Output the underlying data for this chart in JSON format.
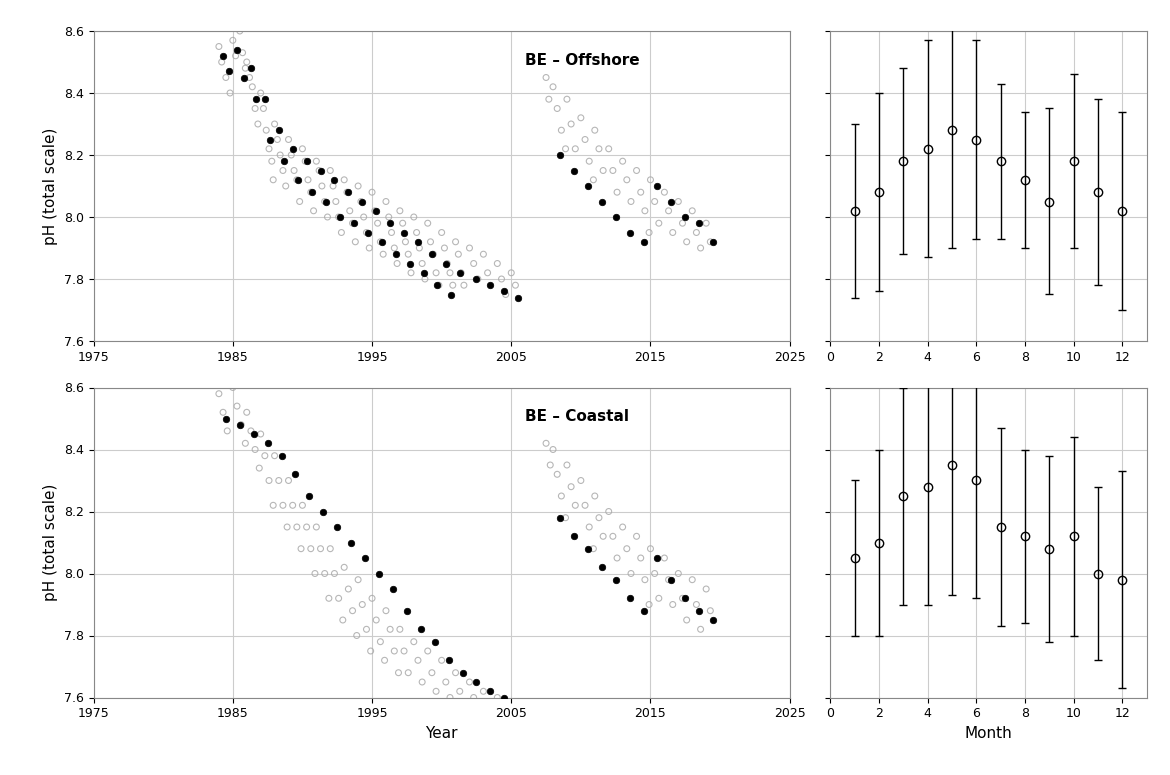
{
  "ylabel": "pH (total scale)",
  "xlabel_left": "Year",
  "xlabel_right": "Month",
  "ylim": [
    7.6,
    8.6
  ],
  "yticks": [
    7.6,
    7.8,
    8.0,
    8.2,
    8.4,
    8.6
  ],
  "xlim_time": [
    1975,
    2025
  ],
  "xticks_time": [
    1975,
    1985,
    1995,
    2005,
    2015,
    2025
  ],
  "xlim_month": [
    0,
    13
  ],
  "xticks_month": [
    0,
    2,
    4,
    6,
    8,
    10,
    12
  ],
  "label_offshore": "BE – Offshore",
  "label_coastal": "BE – Coastal",
  "offshore_gray_pts": [
    [
      1984.0,
      8.55
    ],
    [
      1984.2,
      8.5
    ],
    [
      1984.5,
      8.45
    ],
    [
      1984.8,
      8.4
    ],
    [
      1985.0,
      8.57
    ],
    [
      1985.2,
      8.52
    ],
    [
      1985.5,
      8.6
    ],
    [
      1985.7,
      8.53
    ],
    [
      1985.9,
      8.48
    ],
    [
      1986.0,
      8.5
    ],
    [
      1986.2,
      8.45
    ],
    [
      1986.4,
      8.42
    ],
    [
      1986.6,
      8.35
    ],
    [
      1986.8,
      8.3
    ],
    [
      1987.0,
      8.4
    ],
    [
      1987.2,
      8.35
    ],
    [
      1987.4,
      8.28
    ],
    [
      1987.6,
      8.22
    ],
    [
      1987.8,
      8.18
    ],
    [
      1987.9,
      8.12
    ],
    [
      1988.0,
      8.3
    ],
    [
      1988.2,
      8.25
    ],
    [
      1988.4,
      8.2
    ],
    [
      1988.6,
      8.15
    ],
    [
      1988.8,
      8.1
    ],
    [
      1989.0,
      8.25
    ],
    [
      1989.2,
      8.2
    ],
    [
      1989.4,
      8.15
    ],
    [
      1989.6,
      8.12
    ],
    [
      1989.8,
      8.05
    ],
    [
      1990.0,
      8.22
    ],
    [
      1990.2,
      8.18
    ],
    [
      1990.4,
      8.12
    ],
    [
      1990.6,
      8.08
    ],
    [
      1990.8,
      8.02
    ],
    [
      1991.0,
      8.18
    ],
    [
      1991.2,
      8.15
    ],
    [
      1991.4,
      8.1
    ],
    [
      1991.6,
      8.05
    ],
    [
      1991.8,
      8.0
    ],
    [
      1992.0,
      8.15
    ],
    [
      1992.2,
      8.1
    ],
    [
      1992.4,
      8.05
    ],
    [
      1992.6,
      8.0
    ],
    [
      1992.8,
      7.95
    ],
    [
      1993.0,
      8.12
    ],
    [
      1993.2,
      8.08
    ],
    [
      1993.4,
      8.02
    ],
    [
      1993.6,
      7.98
    ],
    [
      1993.8,
      7.92
    ],
    [
      1994.0,
      8.1
    ],
    [
      1994.2,
      8.05
    ],
    [
      1994.4,
      8.0
    ],
    [
      1994.6,
      7.95
    ],
    [
      1994.8,
      7.9
    ],
    [
      1995.0,
      8.08
    ],
    [
      1995.2,
      8.02
    ],
    [
      1995.4,
      7.98
    ],
    [
      1995.6,
      7.92
    ],
    [
      1995.8,
      7.88
    ],
    [
      1996.0,
      8.05
    ],
    [
      1996.2,
      8.0
    ],
    [
      1996.4,
      7.95
    ],
    [
      1996.6,
      7.9
    ],
    [
      1996.8,
      7.85
    ],
    [
      1997.0,
      8.02
    ],
    [
      1997.2,
      7.98
    ],
    [
      1997.4,
      7.92
    ],
    [
      1997.6,
      7.88
    ],
    [
      1997.8,
      7.82
    ],
    [
      1998.0,
      8.0
    ],
    [
      1998.2,
      7.95
    ],
    [
      1998.4,
      7.9
    ],
    [
      1998.6,
      7.85
    ],
    [
      1998.8,
      7.8
    ],
    [
      1999.0,
      7.98
    ],
    [
      1999.2,
      7.92
    ],
    [
      1999.4,
      7.88
    ],
    [
      1999.6,
      7.82
    ],
    [
      1999.8,
      7.78
    ],
    [
      2000.0,
      7.95
    ],
    [
      2000.2,
      7.9
    ],
    [
      2000.4,
      7.85
    ],
    [
      2000.6,
      7.82
    ],
    [
      2000.8,
      7.78
    ],
    [
      2001.0,
      7.92
    ],
    [
      2001.2,
      7.88
    ],
    [
      2001.4,
      7.82
    ],
    [
      2001.6,
      7.78
    ],
    [
      2002.0,
      7.9
    ],
    [
      2002.3,
      7.85
    ],
    [
      2002.6,
      7.8
    ],
    [
      2003.0,
      7.88
    ],
    [
      2003.3,
      7.82
    ],
    [
      2004.0,
      7.85
    ],
    [
      2004.3,
      7.8
    ],
    [
      2004.6,
      7.75
    ],
    [
      2005.0,
      7.82
    ],
    [
      2005.3,
      7.78
    ],
    [
      2007.5,
      8.45
    ],
    [
      2007.7,
      8.38
    ],
    [
      2008.0,
      8.42
    ],
    [
      2008.3,
      8.35
    ],
    [
      2008.6,
      8.28
    ],
    [
      2008.9,
      8.22
    ],
    [
      2009.0,
      8.38
    ],
    [
      2009.3,
      8.3
    ],
    [
      2009.6,
      8.22
    ],
    [
      2010.0,
      8.32
    ],
    [
      2010.3,
      8.25
    ],
    [
      2010.6,
      8.18
    ],
    [
      2010.9,
      8.12
    ],
    [
      2011.0,
      8.28
    ],
    [
      2011.3,
      8.22
    ],
    [
      2011.6,
      8.15
    ],
    [
      2012.0,
      8.22
    ],
    [
      2012.3,
      8.15
    ],
    [
      2012.6,
      8.08
    ],
    [
      2013.0,
      8.18
    ],
    [
      2013.3,
      8.12
    ],
    [
      2013.6,
      8.05
    ],
    [
      2014.0,
      8.15
    ],
    [
      2014.3,
      8.08
    ],
    [
      2014.6,
      8.02
    ],
    [
      2014.9,
      7.95
    ],
    [
      2015.0,
      8.12
    ],
    [
      2015.3,
      8.05
    ],
    [
      2015.6,
      7.98
    ],
    [
      2016.0,
      8.08
    ],
    [
      2016.3,
      8.02
    ],
    [
      2016.6,
      7.95
    ],
    [
      2017.0,
      8.05
    ],
    [
      2017.3,
      7.98
    ],
    [
      2017.6,
      7.92
    ],
    [
      2018.0,
      8.02
    ],
    [
      2018.3,
      7.95
    ],
    [
      2018.6,
      7.9
    ],
    [
      2019.0,
      7.98
    ],
    [
      2019.3,
      7.92
    ]
  ],
  "offshore_black_pts": [
    [
      1984.3,
      8.52
    ],
    [
      1984.7,
      8.47
    ],
    [
      1985.3,
      8.54
    ],
    [
      1985.8,
      8.45
    ],
    [
      1986.3,
      8.48
    ],
    [
      1986.7,
      8.38
    ],
    [
      1987.3,
      8.38
    ],
    [
      1987.7,
      8.25
    ],
    [
      1988.3,
      8.28
    ],
    [
      1988.7,
      8.18
    ],
    [
      1989.3,
      8.22
    ],
    [
      1989.7,
      8.12
    ],
    [
      1990.3,
      8.18
    ],
    [
      1990.7,
      8.08
    ],
    [
      1991.3,
      8.15
    ],
    [
      1991.7,
      8.05
    ],
    [
      1992.3,
      8.12
    ],
    [
      1992.7,
      8.0
    ],
    [
      1993.3,
      8.08
    ],
    [
      1993.7,
      7.98
    ],
    [
      1994.3,
      8.05
    ],
    [
      1994.7,
      7.95
    ],
    [
      1995.3,
      8.02
    ],
    [
      1995.7,
      7.92
    ],
    [
      1996.3,
      7.98
    ],
    [
      1996.7,
      7.88
    ],
    [
      1997.3,
      7.95
    ],
    [
      1997.7,
      7.85
    ],
    [
      1998.3,
      7.92
    ],
    [
      1998.7,
      7.82
    ],
    [
      1999.3,
      7.88
    ],
    [
      1999.7,
      7.78
    ],
    [
      2000.3,
      7.85
    ],
    [
      2000.7,
      7.75
    ],
    [
      2001.3,
      7.82
    ],
    [
      2002.5,
      7.8
    ],
    [
      2003.5,
      7.78
    ],
    [
      2004.5,
      7.76
    ],
    [
      2005.5,
      7.74
    ],
    [
      2008.5,
      8.2
    ],
    [
      2009.5,
      8.15
    ],
    [
      2010.5,
      8.1
    ],
    [
      2011.5,
      8.05
    ],
    [
      2012.5,
      8.0
    ],
    [
      2013.5,
      7.95
    ],
    [
      2014.5,
      7.92
    ],
    [
      2015.5,
      8.1
    ],
    [
      2016.5,
      8.05
    ],
    [
      2017.5,
      8.0
    ],
    [
      2018.5,
      7.98
    ],
    [
      2019.5,
      7.92
    ]
  ],
  "offshore_season_months": [
    1,
    2,
    3,
    4,
    5,
    6,
    7,
    8,
    9,
    10,
    11,
    12
  ],
  "offshore_season_mean": [
    8.02,
    8.08,
    8.18,
    8.22,
    8.28,
    8.25,
    8.18,
    8.12,
    8.05,
    8.18,
    8.08,
    8.02
  ],
  "offshore_season_std": [
    0.28,
    0.32,
    0.3,
    0.35,
    0.38,
    0.32,
    0.25,
    0.22,
    0.3,
    0.28,
    0.3,
    0.32
  ],
  "coastal_gray_pts": [
    [
      1984.0,
      8.58
    ],
    [
      1984.3,
      8.52
    ],
    [
      1984.6,
      8.46
    ],
    [
      1985.0,
      8.6
    ],
    [
      1985.3,
      8.54
    ],
    [
      1985.6,
      8.48
    ],
    [
      1985.9,
      8.42
    ],
    [
      1986.0,
      8.52
    ],
    [
      1986.3,
      8.46
    ],
    [
      1986.6,
      8.4
    ],
    [
      1986.9,
      8.34
    ],
    [
      1987.0,
      8.45
    ],
    [
      1987.3,
      8.38
    ],
    [
      1987.6,
      8.3
    ],
    [
      1987.9,
      8.22
    ],
    [
      1988.0,
      8.38
    ],
    [
      1988.3,
      8.3
    ],
    [
      1988.6,
      8.22
    ],
    [
      1988.9,
      8.15
    ],
    [
      1989.0,
      8.3
    ],
    [
      1989.3,
      8.22
    ],
    [
      1989.6,
      8.15
    ],
    [
      1989.9,
      8.08
    ],
    [
      1990.0,
      8.22
    ],
    [
      1990.3,
      8.15
    ],
    [
      1990.6,
      8.08
    ],
    [
      1990.9,
      8.0
    ],
    [
      1991.0,
      8.15
    ],
    [
      1991.3,
      8.08
    ],
    [
      1991.6,
      8.0
    ],
    [
      1991.9,
      7.92
    ],
    [
      1992.0,
      8.08
    ],
    [
      1992.3,
      8.0
    ],
    [
      1992.6,
      7.92
    ],
    [
      1992.9,
      7.85
    ],
    [
      1993.0,
      8.02
    ],
    [
      1993.3,
      7.95
    ],
    [
      1993.6,
      7.88
    ],
    [
      1993.9,
      7.8
    ],
    [
      1994.0,
      7.98
    ],
    [
      1994.3,
      7.9
    ],
    [
      1994.6,
      7.82
    ],
    [
      1994.9,
      7.75
    ],
    [
      1995.0,
      7.92
    ],
    [
      1995.3,
      7.85
    ],
    [
      1995.6,
      7.78
    ],
    [
      1995.9,
      7.72
    ],
    [
      1996.0,
      7.88
    ],
    [
      1996.3,
      7.82
    ],
    [
      1996.6,
      7.75
    ],
    [
      1996.9,
      7.68
    ],
    [
      1997.0,
      7.82
    ],
    [
      1997.3,
      7.75
    ],
    [
      1997.6,
      7.68
    ],
    [
      1998.0,
      7.78
    ],
    [
      1998.3,
      7.72
    ],
    [
      1998.6,
      7.65
    ],
    [
      1999.0,
      7.75
    ],
    [
      1999.3,
      7.68
    ],
    [
      1999.6,
      7.62
    ],
    [
      2000.0,
      7.72
    ],
    [
      2000.3,
      7.65
    ],
    [
      2000.6,
      7.6
    ],
    [
      2001.0,
      7.68
    ],
    [
      2001.3,
      7.62
    ],
    [
      2001.6,
      7.58
    ],
    [
      2002.0,
      7.65
    ],
    [
      2002.3,
      7.6
    ],
    [
      2003.0,
      7.62
    ],
    [
      2003.3,
      7.58
    ],
    [
      2003.6,
      7.55
    ],
    [
      2004.0,
      7.6
    ],
    [
      2004.3,
      7.56
    ],
    [
      2005.0,
      7.58
    ],
    [
      2005.5,
      7.54
    ],
    [
      2006.0,
      7.55
    ],
    [
      2007.5,
      8.42
    ],
    [
      2007.8,
      8.35
    ],
    [
      2008.0,
      8.4
    ],
    [
      2008.3,
      8.32
    ],
    [
      2008.6,
      8.25
    ],
    [
      2008.9,
      8.18
    ],
    [
      2009.0,
      8.35
    ],
    [
      2009.3,
      8.28
    ],
    [
      2009.6,
      8.22
    ],
    [
      2010.0,
      8.3
    ],
    [
      2010.3,
      8.22
    ],
    [
      2010.6,
      8.15
    ],
    [
      2010.9,
      8.08
    ],
    [
      2011.0,
      8.25
    ],
    [
      2011.3,
      8.18
    ],
    [
      2011.6,
      8.12
    ],
    [
      2012.0,
      8.2
    ],
    [
      2012.3,
      8.12
    ],
    [
      2012.6,
      8.05
    ],
    [
      2013.0,
      8.15
    ],
    [
      2013.3,
      8.08
    ],
    [
      2013.6,
      8.0
    ],
    [
      2014.0,
      8.12
    ],
    [
      2014.3,
      8.05
    ],
    [
      2014.6,
      7.98
    ],
    [
      2014.9,
      7.9
    ],
    [
      2015.0,
      8.08
    ],
    [
      2015.3,
      8.0
    ],
    [
      2015.6,
      7.92
    ],
    [
      2016.0,
      8.05
    ],
    [
      2016.3,
      7.98
    ],
    [
      2016.6,
      7.9
    ],
    [
      2017.0,
      8.0
    ],
    [
      2017.3,
      7.92
    ],
    [
      2017.6,
      7.85
    ],
    [
      2018.0,
      7.98
    ],
    [
      2018.3,
      7.9
    ],
    [
      2018.6,
      7.82
    ],
    [
      2019.0,
      7.95
    ],
    [
      2019.3,
      7.88
    ]
  ],
  "coastal_black_pts": [
    [
      1984.5,
      8.5
    ],
    [
      1985.5,
      8.48
    ],
    [
      1986.5,
      8.45
    ],
    [
      1987.5,
      8.42
    ],
    [
      1988.5,
      8.38
    ],
    [
      1989.5,
      8.32
    ],
    [
      1990.5,
      8.25
    ],
    [
      1991.5,
      8.2
    ],
    [
      1992.5,
      8.15
    ],
    [
      1993.5,
      8.1
    ],
    [
      1994.5,
      8.05
    ],
    [
      1995.5,
      8.0
    ],
    [
      1996.5,
      7.95
    ],
    [
      1997.5,
      7.88
    ],
    [
      1998.5,
      7.82
    ],
    [
      1999.5,
      7.78
    ],
    [
      2000.5,
      7.72
    ],
    [
      2001.5,
      7.68
    ],
    [
      2002.5,
      7.65
    ],
    [
      2003.5,
      7.62
    ],
    [
      2004.5,
      7.6
    ],
    [
      2005.5,
      7.58
    ],
    [
      2008.5,
      8.18
    ],
    [
      2009.5,
      8.12
    ],
    [
      2010.5,
      8.08
    ],
    [
      2011.5,
      8.02
    ],
    [
      2012.5,
      7.98
    ],
    [
      2013.5,
      7.92
    ],
    [
      2014.5,
      7.88
    ],
    [
      2015.5,
      8.05
    ],
    [
      2016.5,
      7.98
    ],
    [
      2017.5,
      7.92
    ],
    [
      2018.5,
      7.88
    ],
    [
      2019.5,
      7.85
    ]
  ],
  "coastal_season_months": [
    1,
    2,
    3,
    4,
    5,
    6,
    7,
    8,
    9,
    10,
    11,
    12
  ],
  "coastal_season_mean": [
    8.05,
    8.1,
    8.25,
    8.28,
    8.35,
    8.3,
    8.15,
    8.12,
    8.08,
    8.12,
    8.0,
    7.98
  ],
  "coastal_season_std": [
    0.25,
    0.3,
    0.35,
    0.38,
    0.42,
    0.38,
    0.32,
    0.28,
    0.3,
    0.32,
    0.28,
    0.35
  ],
  "gray_color": "#aaaaaa",
  "black_color": "#000000",
  "bg_color": "#ffffff",
  "grid_color": "#cccccc"
}
